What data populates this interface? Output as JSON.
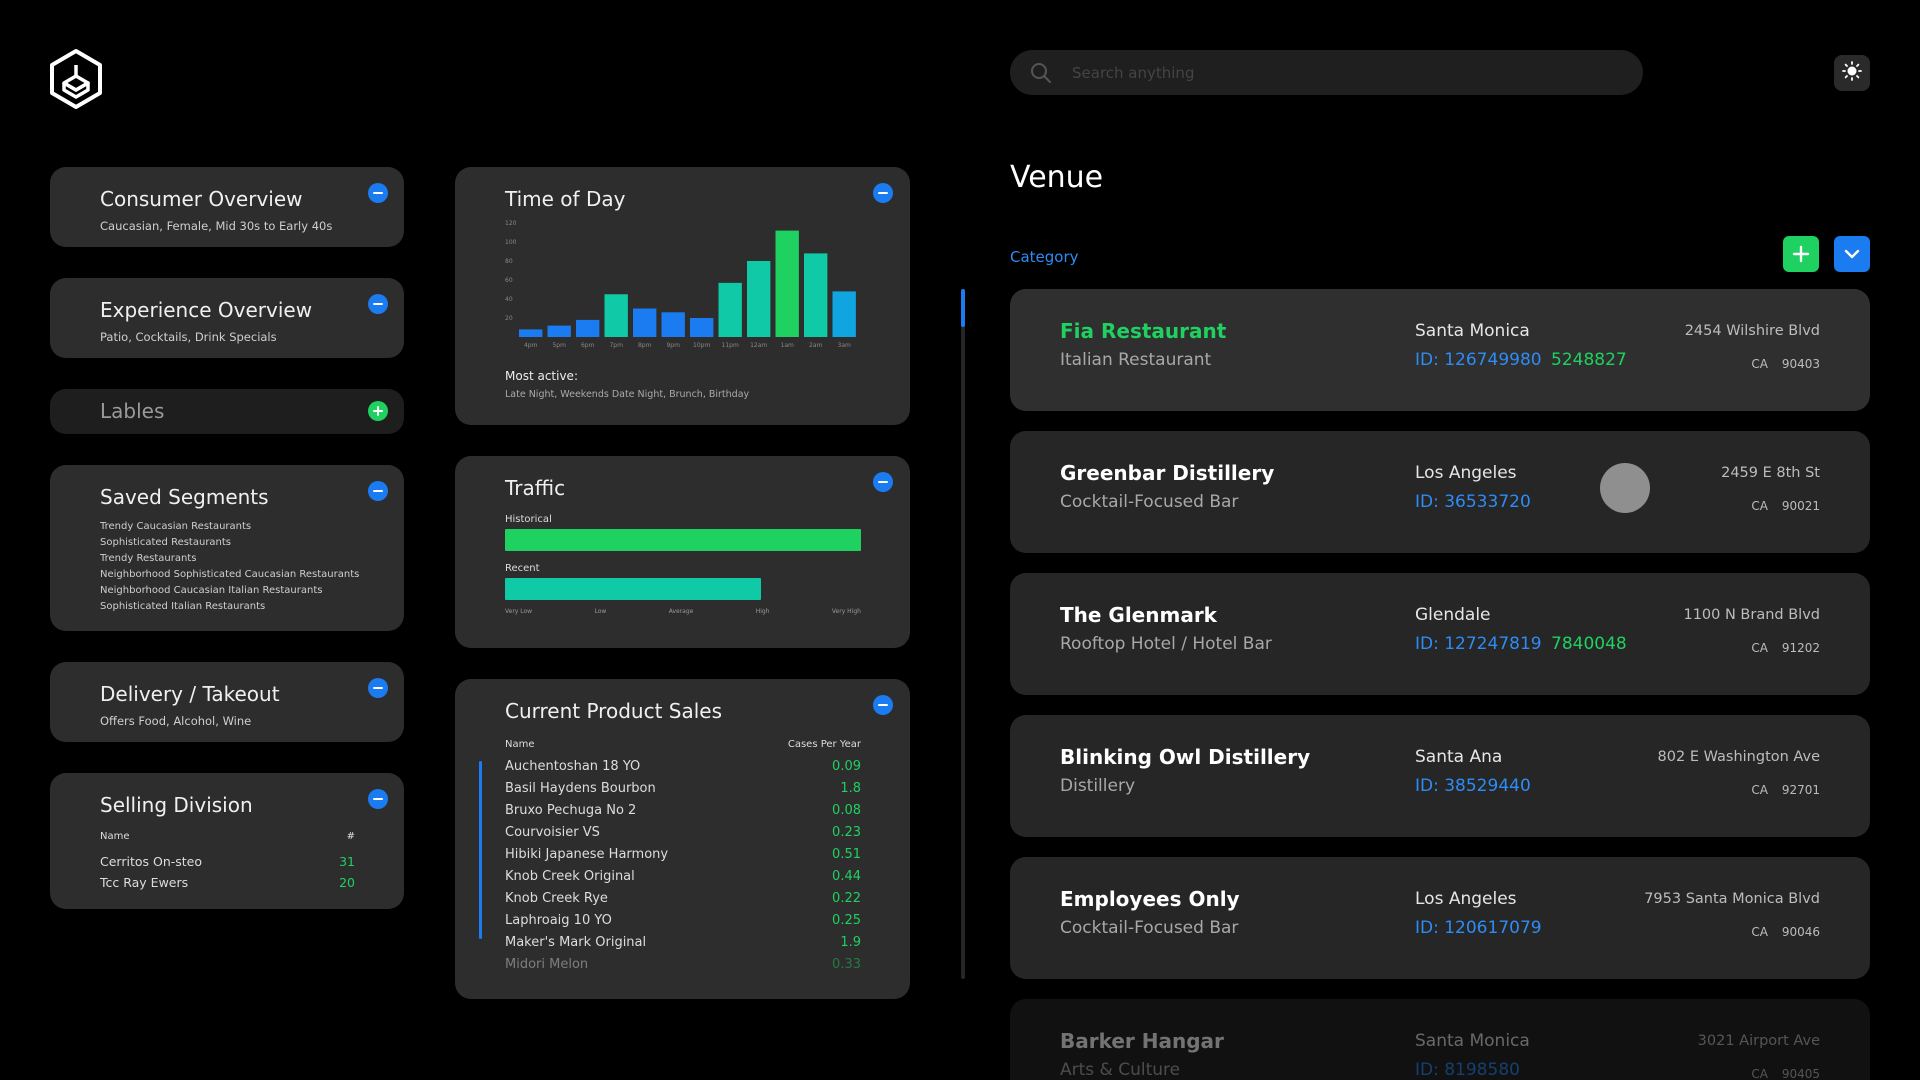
{
  "search": {
    "placeholder": "Search anything"
  },
  "icons": {
    "logo": "hexagon-logo",
    "search": "search-icon",
    "theme": "sun-icon"
  },
  "colors": {
    "accent_blue": "#1a7cf0",
    "accent_green": "#1fd160",
    "teal": "#10c9a6",
    "card_bg": "#2d2d2d"
  },
  "left": {
    "consumer": {
      "title": "Consumer Overview",
      "sub": "Caucasian, Female, Mid 30s to Early 40s"
    },
    "experience": {
      "title": "Experience Overview",
      "sub": "Patio, Cocktails, Drink Specials"
    },
    "labels": {
      "title": "Lables"
    },
    "segments": {
      "title": "Saved Segments",
      "items": [
        "Trendy Caucasian Restaurants",
        "Sophisticated Restaurants",
        "Trendy Restaurants",
        "Neighborhood Sophisticated Caucasian Restaurants",
        "Neighborhood Caucasian Italian Restaurants",
        "Sophisticated Italian Restaurants"
      ]
    },
    "delivery": {
      "title": "Delivery / Takeout",
      "sub": "Offers Food, Alcohol, Wine"
    },
    "selling": {
      "title": "Selling Division",
      "col_name": "Name",
      "col_num": "#",
      "rows": [
        {
          "name": "Cerritos On-steo",
          "num": "31"
        },
        {
          "name": "Tcc Ray Ewers",
          "num": "20"
        }
      ]
    }
  },
  "middle": {
    "time_of_day": {
      "title": "Time of Day",
      "most_active_label": "Most active:",
      "most_active_value": "Late Night, Weekends Date Night, Brunch, Birthday"
    },
    "traffic": {
      "title": "Traffic",
      "historical_label": "Historical",
      "historical_level": 1.0,
      "recent_label": "Recent",
      "recent_level": 0.72,
      "scale": [
        "Very Low",
        "Low",
        "Average",
        "High",
        "Very High"
      ]
    },
    "sales": {
      "title": "Current Product Sales",
      "col_name": "Name",
      "col_value": "Cases Per Year",
      "rows": [
        {
          "name": "Auchentoshan 18 YO",
          "value": "0.09"
        },
        {
          "name": "Basil Haydens Bourbon",
          "value": "1.8"
        },
        {
          "name": "Bruxo Pechuga No 2",
          "value": "0.08"
        },
        {
          "name": "Courvoisier VS",
          "value": "0.23"
        },
        {
          "name": "Hibiki Japanese Harmony",
          "value": "0.51"
        },
        {
          "name": "Knob Creek Original",
          "value": "0.44"
        },
        {
          "name": "Knob Creek Rye",
          "value": "0.22"
        },
        {
          "name": "Laphroaig 10 YO",
          "value": "0.25"
        },
        {
          "name": "Maker's Mark Original",
          "value": "1.9"
        },
        {
          "name": "Midori Melon",
          "value": "0.33"
        }
      ]
    }
  },
  "chart_data": {
    "type": "bar",
    "categories": [
      "4pm",
      "5pm",
      "6pm",
      "7pm",
      "8pm",
      "9pm",
      "10pm",
      "11pm",
      "12am",
      "1am",
      "2am",
      "3am"
    ],
    "values": [
      8,
      12,
      18,
      45,
      30,
      26,
      20,
      57,
      80,
      112,
      88,
      48
    ],
    "yticks": [
      "120",
      "100",
      "80",
      "60",
      "40",
      "20"
    ],
    "ylim": [
      0,
      120
    ],
    "grid": false,
    "colors": [
      "#1a7cf0",
      "#1a7cf0",
      "#1a7cf0",
      "#10c9a6",
      "#1a7cf0",
      "#1a7cf0",
      "#1a7cf0",
      "#10c9a6",
      "#10c9a6",
      "#1fd160",
      "#10c9a6",
      "#10a5e0"
    ]
  },
  "venue": {
    "title": "Venue",
    "category": "Category",
    "items": [
      {
        "name": "Fia Restaurant",
        "type": "Italian Restaurant",
        "city": "Santa Monica",
        "id": "ID: 126749980",
        "phone": "5248827",
        "addr": "2454 Wilshire Blvd",
        "state": "CA",
        "zip": "90403"
      },
      {
        "name": "Greenbar Distillery",
        "type": "Cocktail-Focused Bar",
        "city": "Los Angeles",
        "id": "ID: 36533720",
        "phone": "",
        "addr": "2459 E 8th St",
        "state": "CA",
        "zip": "90021"
      },
      {
        "name": "The Glenmark",
        "type": "Rooftop Hotel / Hotel Bar",
        "city": "Glendale",
        "id": "ID: 127247819",
        "phone": "7840048",
        "addr": "1100 N Brand Blvd",
        "state": "CA",
        "zip": "91202"
      },
      {
        "name": "Blinking Owl Distillery",
        "type": "Distillery",
        "city": "Santa Ana",
        "id": "ID: 38529440",
        "phone": "",
        "addr": "802 E Washington Ave",
        "state": "CA",
        "zip": "92701"
      },
      {
        "name": "Employees Only",
        "type": "Cocktail-Focused Bar",
        "city": "Los Angeles",
        "id": "ID: 120617079",
        "phone": "",
        "addr": "7953 Santa Monica Blvd",
        "state": "CA",
        "zip": "90046"
      },
      {
        "name": "Barker Hangar",
        "type": "Arts & Culture",
        "city": "Santa Monica",
        "id": "ID: 8198580",
        "phone": "",
        "addr": "3021 Airport Ave",
        "state": "CA",
        "zip": "90405"
      }
    ]
  }
}
